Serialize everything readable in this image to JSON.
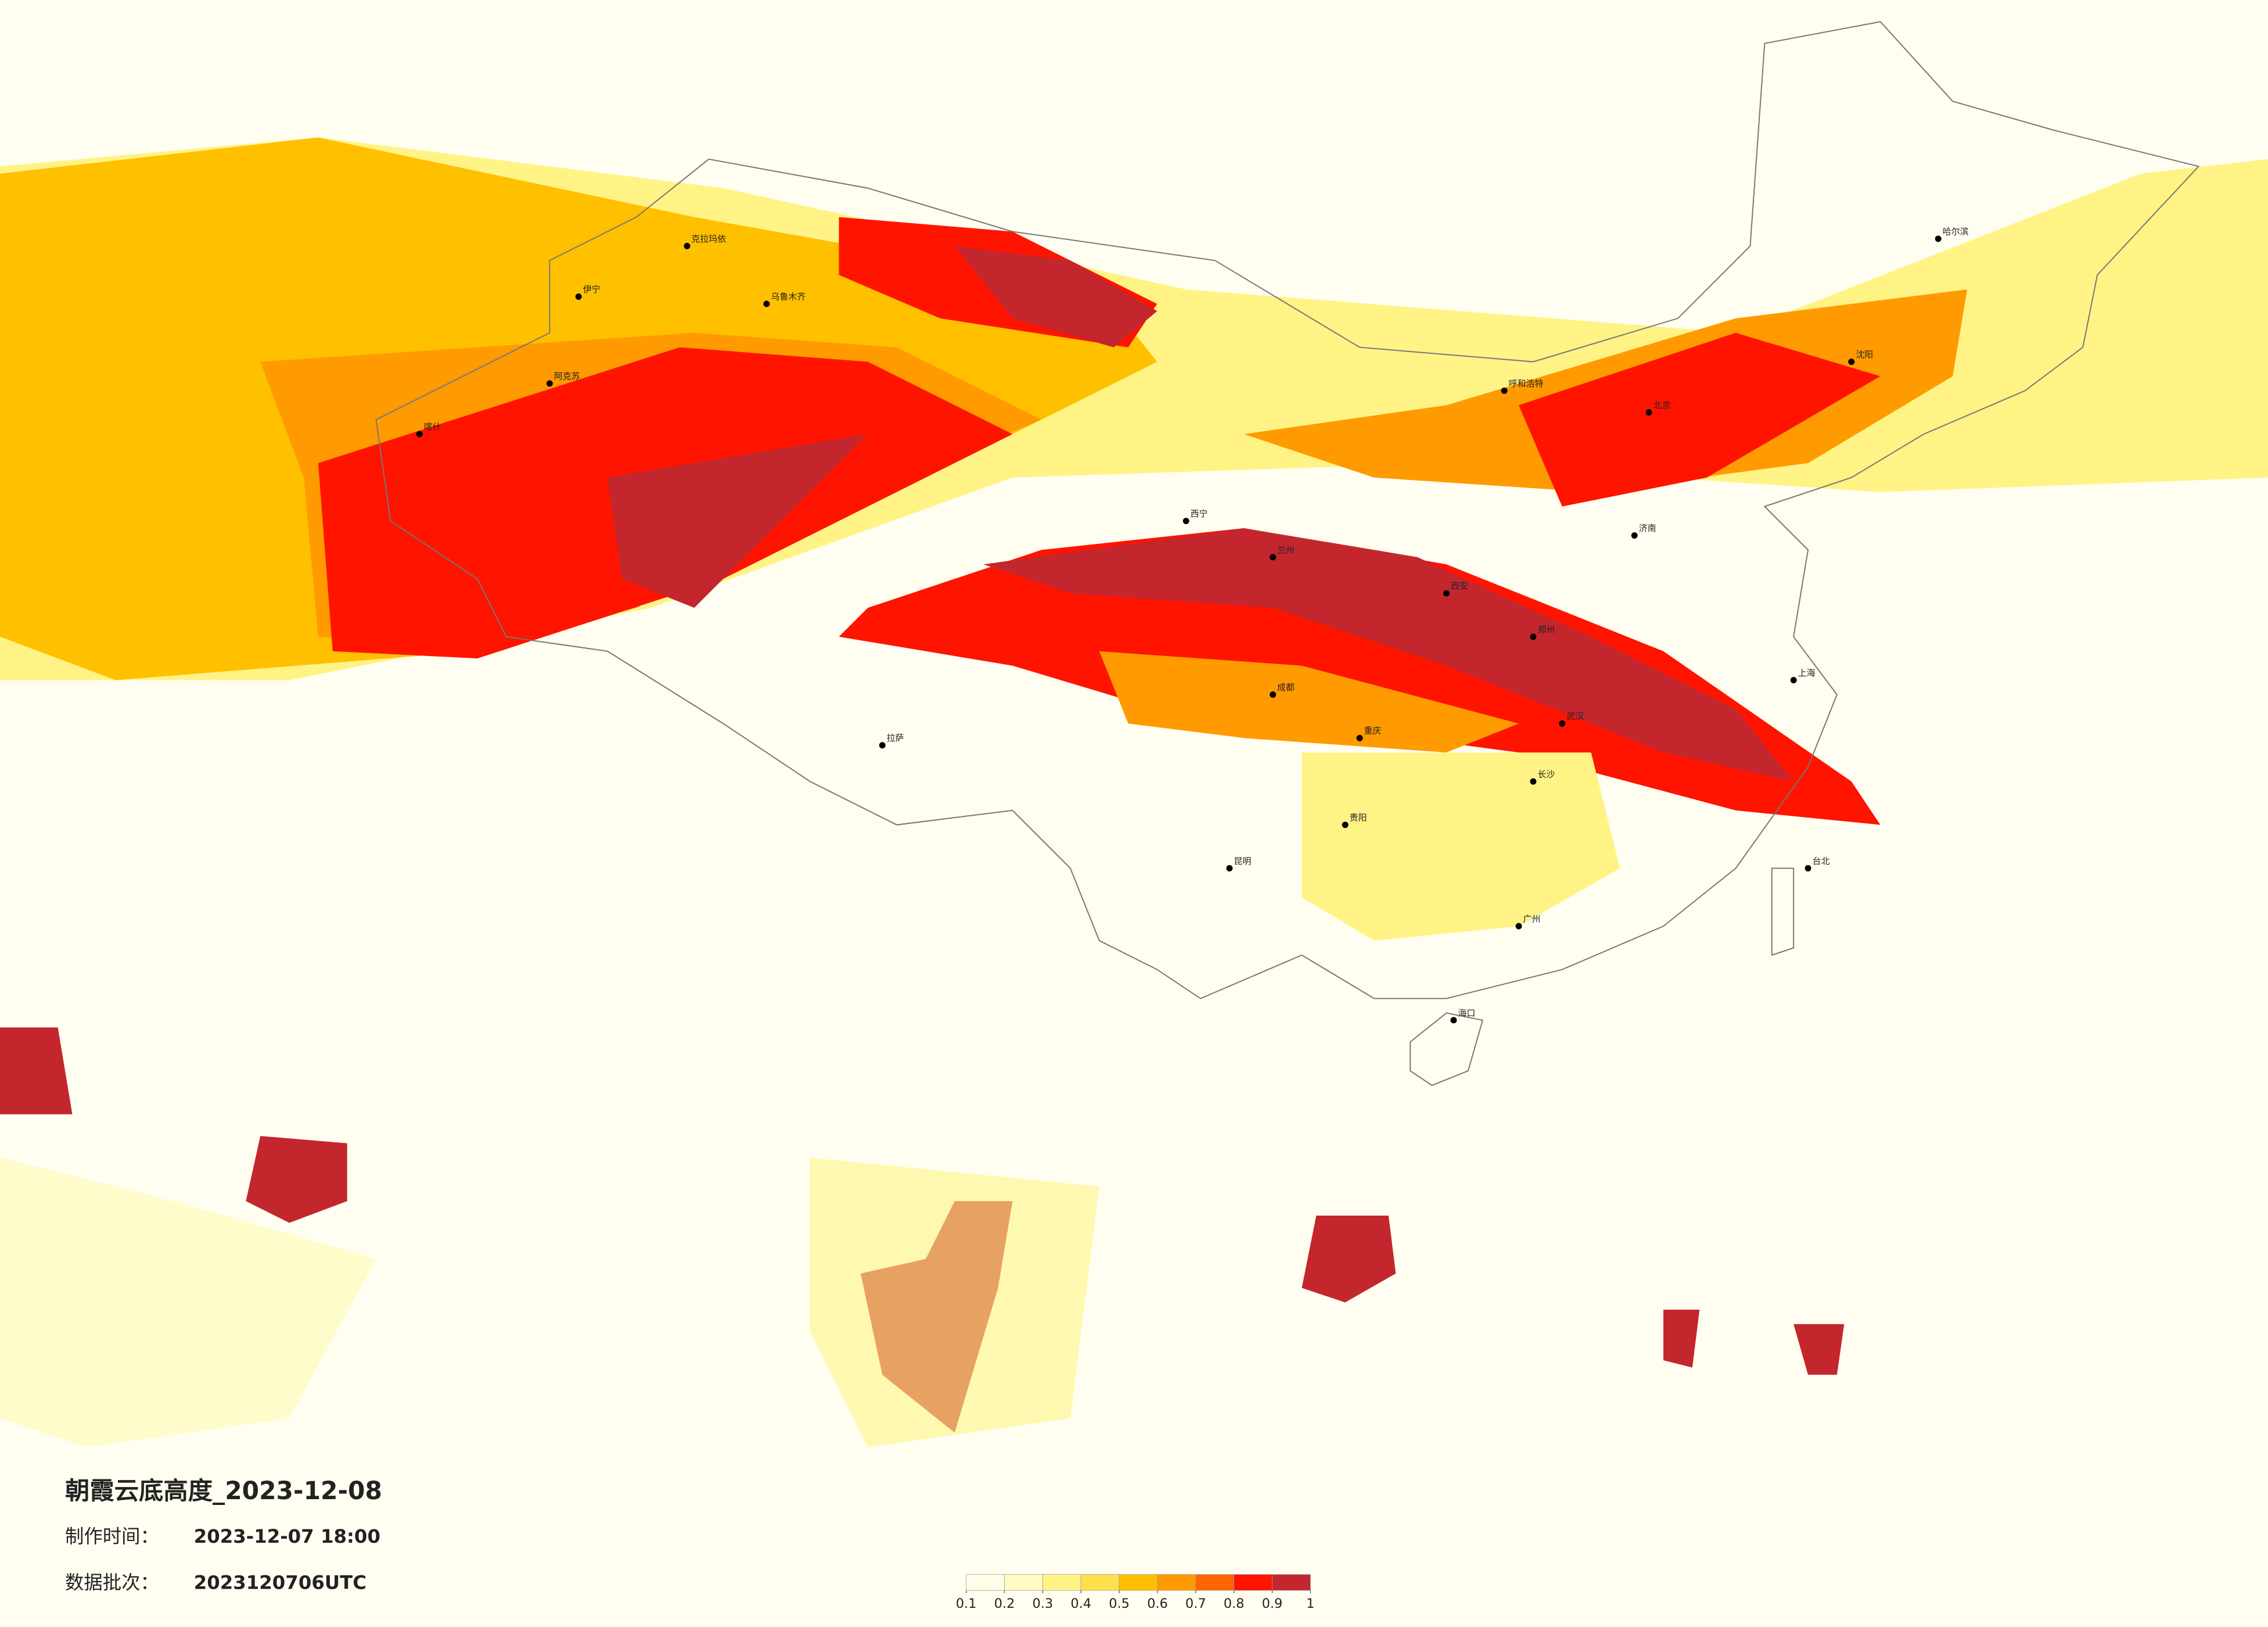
{
  "title": "朝霞云底高度_2023-12-08",
  "production_time_label": "制作时间：",
  "production_time": "2023-12-07 18:00",
  "data_batch_label": "数据批次：",
  "data_batch": "2023120706UTC",
  "legend": {
    "ticks": [
      0.1,
      0.2,
      0.3,
      0.4,
      0.5,
      0.6,
      0.7,
      0.8,
      0.9,
      1
    ],
    "colors": [
      "#fffde8",
      "#fffbc2",
      "#fff385",
      "#ffe04a",
      "#ffc000",
      "#ff9a00",
      "#ff6400",
      "#ff1400",
      "#c4262e"
    ]
  },
  "cities": [
    "乌鲁木齐",
    "克拉玛依",
    "伊宁",
    "阿克苏",
    "喀什",
    "拉萨",
    "西宁",
    "兰州",
    "成都",
    "重庆",
    "昆明",
    "贵阳",
    "西安",
    "武汉",
    "北京",
    "上海",
    "广州",
    "哈尔滨",
    "呼和浩特",
    "海口",
    "台北",
    "长沙",
    "郑州",
    "济南",
    "沈阳"
  ]
}
